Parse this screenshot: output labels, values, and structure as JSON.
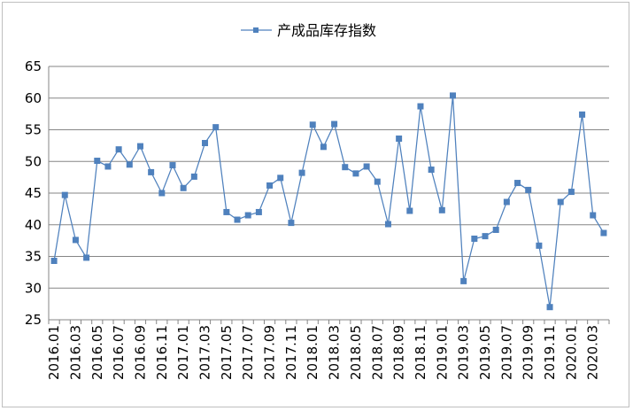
{
  "chart_data": {
    "type": "line",
    "legend": {
      "position": "top-center",
      "entries": [
        "产成品库存指数"
      ]
    },
    "ylim": [
      25,
      65
    ],
    "yticks": [
      25,
      30,
      35,
      40,
      45,
      50,
      55,
      60,
      65
    ],
    "grid": {
      "y": true,
      "x": false
    },
    "colors": {
      "series": "#4f81bd",
      "grid": "#868686",
      "axis": "#868686"
    },
    "xtick_labels": [
      "2016.01",
      "2016.03",
      "2016.05",
      "2016.07",
      "2016.09",
      "2016.11",
      "2017.01",
      "2017.03",
      "2017.05",
      "2017.07",
      "2017.09",
      "2017.11",
      "2018.01",
      "2018.03",
      "2018.05",
      "2018.07",
      "2018.09",
      "2018.11",
      "2019.01",
      "2019.03",
      "2019.05",
      "2019.07",
      "2019.09",
      "2019.11",
      "2020.01",
      "2020.03"
    ],
    "categories": [
      "2016.01",
      "2016.02",
      "2016.03",
      "2016.04",
      "2016.05",
      "2016.06",
      "2016.07",
      "2016.08",
      "2016.09",
      "2016.10",
      "2016.11",
      "2016.12",
      "2017.01",
      "2017.02",
      "2017.03",
      "2017.04",
      "2017.05",
      "2017.06",
      "2017.07",
      "2017.08",
      "2017.09",
      "2017.10",
      "2017.11",
      "2017.12",
      "2018.01",
      "2018.02",
      "2018.03",
      "2018.04",
      "2018.05",
      "2018.06",
      "2018.07",
      "2018.08",
      "2018.09",
      "2018.10",
      "2018.11",
      "2018.12",
      "2019.01",
      "2019.02",
      "2019.03",
      "2019.04",
      "2019.05",
      "2019.06",
      "2019.07",
      "2019.08",
      "2019.09",
      "2019.10",
      "2019.11",
      "2019.12",
      "2020.01",
      "2020.02",
      "2020.03",
      "2020.04"
    ],
    "series": [
      {
        "name": "产成品库存指数",
        "values": [
          34.3,
          44.7,
          37.6,
          34.8,
          50.1,
          49.2,
          51.9,
          49.5,
          52.4,
          48.3,
          45.0,
          49.4,
          45.8,
          47.6,
          52.9,
          55.4,
          42.0,
          40.8,
          41.5,
          42.0,
          46.2,
          47.4,
          40.3,
          48.2,
          55.8,
          52.3,
          55.9,
          49.1,
          48.1,
          49.2,
          46.8,
          40.1,
          53.6,
          42.2,
          58.7,
          48.7,
          42.3,
          60.4,
          31.1,
          37.8,
          38.2,
          39.2,
          43.6,
          46.6,
          45.5,
          36.7,
          27.0,
          43.6,
          45.2,
          57.4,
          41.5,
          38.7
        ]
      }
    ]
  }
}
